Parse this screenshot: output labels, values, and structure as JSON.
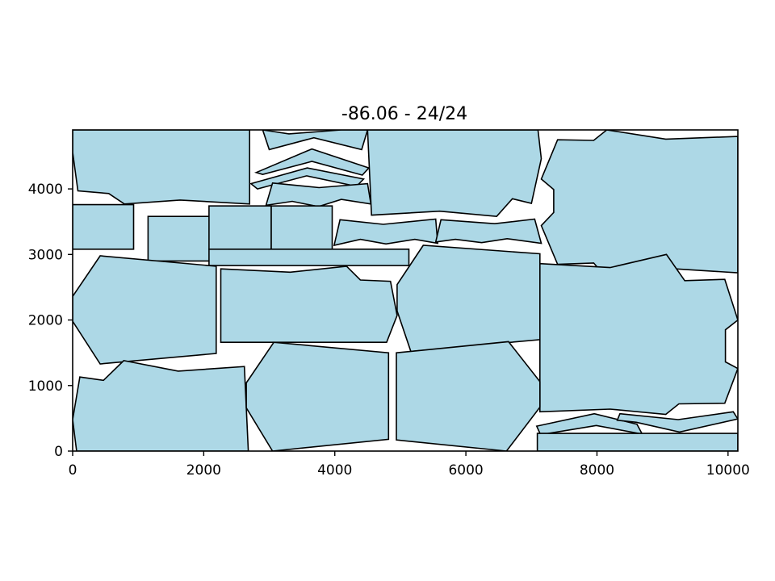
{
  "title": "-86.06 - 24/24",
  "fill_color": "#add8e6",
  "stroke_color": "#000000",
  "axes": {
    "xlim": [
      0,
      10150
    ],
    "ylim": [
      0,
      4900
    ],
    "x_ticks": [
      {
        "value": 0,
        "label": "0"
      },
      {
        "value": 2000,
        "label": "2000"
      },
      {
        "value": 4000,
        "label": "4000"
      },
      {
        "value": 6000,
        "label": "6000"
      },
      {
        "value": 8000,
        "label": "8000"
      },
      {
        "value": 10000,
        "label": "10000"
      }
    ],
    "y_ticks": [
      {
        "value": 0,
        "label": "0"
      },
      {
        "value": 1000,
        "label": "1000"
      },
      {
        "value": 2000,
        "label": "2000"
      },
      {
        "value": 3000,
        "label": "3000"
      },
      {
        "value": 4000,
        "label": "4000"
      }
    ]
  },
  "pieces": [
    {
      "id": "top-left-block",
      "points": [
        [
          0,
          4900
        ],
        [
          0,
          4560
        ],
        [
          80,
          3970
        ],
        [
          550,
          3930
        ],
        [
          790,
          3770
        ],
        [
          1640,
          3830
        ],
        [
          2700,
          3770
        ],
        [
          2700,
          4900
        ]
      ]
    },
    {
      "id": "top-chevron-1",
      "points": [
        [
          2900,
          4900
        ],
        [
          3300,
          4840
        ],
        [
          4100,
          4900
        ],
        [
          4500,
          4900
        ],
        [
          4410,
          4600
        ],
        [
          3680,
          4780
        ],
        [
          3000,
          4600
        ],
        [
          2900,
          4900
        ]
      ]
    },
    {
      "id": "top-chevron-2",
      "points": [
        [
          2800,
          4250
        ],
        [
          3650,
          4610
        ],
        [
          4520,
          4320
        ],
        [
          4420,
          4210
        ],
        [
          3650,
          4420
        ],
        [
          2900,
          4220
        ]
      ]
    },
    {
      "id": "top-chevron-3",
      "points": [
        [
          2720,
          4080
        ],
        [
          3580,
          4320
        ],
        [
          4440,
          4150
        ],
        [
          4330,
          4040
        ],
        [
          3570,
          4200
        ],
        [
          2820,
          4000
        ]
      ]
    },
    {
      "id": "top-chevron-4",
      "points": [
        [
          3050,
          4090
        ],
        [
          3760,
          4020
        ],
        [
          4500,
          4080
        ],
        [
          4550,
          3770
        ],
        [
          4100,
          3840
        ],
        [
          3750,
          3730
        ],
        [
          3350,
          3810
        ],
        [
          2950,
          3750
        ]
      ]
    },
    {
      "id": "top-center-block",
      "points": [
        [
          4500,
          4900
        ],
        [
          7100,
          4900
        ],
        [
          7150,
          4460
        ],
        [
          7000,
          3780
        ],
        [
          6710,
          3850
        ],
        [
          6470,
          3580
        ],
        [
          5600,
          3660
        ],
        [
          4560,
          3600
        ]
      ]
    },
    {
      "id": "top-right-block",
      "points": [
        [
          7400,
          4750
        ],
        [
          7950,
          4740
        ],
        [
          8150,
          4900
        ],
        [
          9050,
          4760
        ],
        [
          10150,
          4800
        ],
        [
          10150,
          2720
        ],
        [
          9050,
          2790
        ],
        [
          8150,
          2640
        ],
        [
          7950,
          2870
        ],
        [
          7400,
          2850
        ],
        [
          7150,
          3440
        ],
        [
          7340,
          3640
        ],
        [
          7340,
          3990
        ],
        [
          7150,
          4150
        ]
      ]
    },
    {
      "id": "rect-left-1",
      "points": [
        [
          0,
          3760
        ],
        [
          930,
          3760
        ],
        [
          930,
          3080
        ],
        [
          0,
          3080
        ]
      ]
    },
    {
      "id": "rect-left-2",
      "points": [
        [
          1150,
          3580
        ],
        [
          2100,
          3580
        ],
        [
          2100,
          2900
        ],
        [
          1150,
          2900
        ]
      ]
    },
    {
      "id": "rect-mid-1",
      "points": [
        [
          2080,
          3740
        ],
        [
          3030,
          3740
        ],
        [
          3030,
          3080
        ],
        [
          2080,
          3080
        ]
      ]
    },
    {
      "id": "rect-mid-2",
      "points": [
        [
          3030,
          3740
        ],
        [
          3960,
          3740
        ],
        [
          3960,
          3080
        ],
        [
          3030,
          3080
        ]
      ]
    },
    {
      "id": "rect-long",
      "points": [
        [
          2080,
          3080
        ],
        [
          5130,
          3080
        ],
        [
          5130,
          2830
        ],
        [
          2080,
          2830
        ]
      ]
    },
    {
      "id": "mid-bow-left",
      "points": [
        [
          4080,
          3530
        ],
        [
          4740,
          3460
        ],
        [
          5540,
          3540
        ],
        [
          5570,
          3170
        ],
        [
          5220,
          3230
        ],
        [
          4780,
          3160
        ],
        [
          4390,
          3230
        ],
        [
          3990,
          3140
        ]
      ]
    },
    {
      "id": "mid-bow-right",
      "points": [
        [
          5620,
          3530
        ],
        [
          6440,
          3470
        ],
        [
          7050,
          3540
        ],
        [
          7150,
          3170
        ],
        [
          6630,
          3240
        ],
        [
          6240,
          3180
        ],
        [
          5840,
          3230
        ],
        [
          5540,
          3190
        ]
      ]
    },
    {
      "id": "mid-left-hex",
      "points": [
        [
          0,
          2360
        ],
        [
          420,
          2980
        ],
        [
          2190,
          2820
        ],
        [
          2190,
          1490
        ],
        [
          420,
          1330
        ],
        [
          0,
          1980
        ]
      ]
    },
    {
      "id": "mid-center-left",
      "points": [
        [
          2260,
          2780
        ],
        [
          3320,
          2730
        ],
        [
          4180,
          2820
        ],
        [
          4390,
          2610
        ],
        [
          4850,
          2590
        ],
        [
          4950,
          2070
        ],
        [
          4790,
          1660
        ],
        [
          2260,
          1660
        ]
      ]
    },
    {
      "id": "mid-center-right",
      "points": [
        [
          4950,
          2540
        ],
        [
          5350,
          3140
        ],
        [
          7130,
          3010
        ],
        [
          7130,
          1700
        ],
        [
          5160,
          1520
        ],
        [
          4950,
          2140
        ]
      ]
    },
    {
      "id": "mid-right-block",
      "points": [
        [
          7130,
          2860
        ],
        [
          8200,
          2800
        ],
        [
          9060,
          3000
        ],
        [
          9340,
          2600
        ],
        [
          9950,
          2620
        ],
        [
          10150,
          2000
        ],
        [
          9960,
          1850
        ],
        [
          9960,
          1360
        ],
        [
          10150,
          1260
        ],
        [
          9950,
          730
        ],
        [
          9250,
          720
        ],
        [
          9050,
          560
        ],
        [
          8200,
          640
        ],
        [
          7130,
          600
        ]
      ]
    },
    {
      "id": "bottom-left-block",
      "points": [
        [
          0,
          480
        ],
        [
          110,
          1130
        ],
        [
          470,
          1080
        ],
        [
          780,
          1380
        ],
        [
          1610,
          1220
        ],
        [
          2620,
          1290
        ],
        [
          2680,
          0
        ],
        [
          60,
          0
        ]
      ]
    },
    {
      "id": "bottom-center-left",
      "points": [
        [
          2650,
          1040
        ],
        [
          3070,
          1660
        ],
        [
          4820,
          1500
        ],
        [
          4820,
          180
        ],
        [
          3050,
          0
        ],
        [
          2650,
          660
        ]
      ]
    },
    {
      "id": "bottom-center-right",
      "points": [
        [
          4940,
          1500
        ],
        [
          6650,
          1670
        ],
        [
          7130,
          1060
        ],
        [
          7130,
          670
        ],
        [
          6620,
          0
        ],
        [
          4940,
          170
        ]
      ]
    },
    {
      "id": "bottom-right-sliver",
      "points": [
        [
          7080,
          380
        ],
        [
          7960,
          570
        ],
        [
          8610,
          410
        ],
        [
          8690,
          260
        ],
        [
          7990,
          390
        ],
        [
          7140,
          250
        ]
      ]
    },
    {
      "id": "bottom-right-chevron",
      "points": [
        [
          8350,
          570
        ],
        [
          9240,
          480
        ],
        [
          10080,
          600
        ],
        [
          10150,
          490
        ],
        [
          9260,
          290
        ],
        [
          8600,
          440
        ],
        [
          8310,
          470
        ]
      ]
    },
    {
      "id": "bottom-right-strip",
      "points": [
        [
          7090,
          270
        ],
        [
          10150,
          270
        ],
        [
          10150,
          0
        ],
        [
          7090,
          0
        ]
      ]
    }
  ]
}
